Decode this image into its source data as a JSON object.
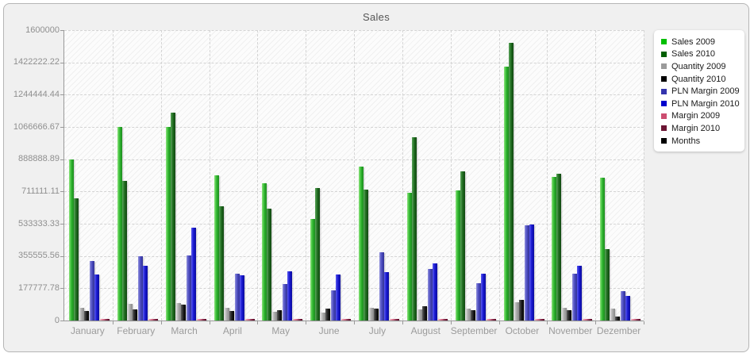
{
  "title": "Sales",
  "legend": {
    "items": [
      {
        "label": "Sales 2009",
        "color": "#00bf00"
      },
      {
        "label": "Sales 2010",
        "color": "#005f00"
      },
      {
        "label": "Quantity 2009",
        "color": "#9b9b9b"
      },
      {
        "label": "Quantity 2010",
        "color": "#000000"
      },
      {
        "label": "PLN Margin 2009",
        "color": "#3434ad"
      },
      {
        "label": "PLN Margin 2010",
        "color": "#0000cc"
      },
      {
        "label": "Margin 2009",
        "color": "#cc4d70"
      },
      {
        "label": "Margin 2010",
        "color": "#6b1433"
      },
      {
        "label": "Months",
        "color": "#000000"
      }
    ]
  },
  "chart_data": {
    "type": "bar",
    "title": "Sales",
    "categories": [
      "January",
      "February",
      "March",
      "April",
      "May",
      "June",
      "July",
      "August",
      "September",
      "October",
      "November",
      "Dezember"
    ],
    "y_ticks": [
      "1600000",
      "1422222.22",
      "1244444.44",
      "1066666.67",
      "888888.89",
      "711111.11",
      "533333.33",
      "355555.56",
      "177777.78",
      "0"
    ],
    "ylim": [
      0,
      1600000
    ],
    "grid": {
      "horizontal": "dashed",
      "vertical": "dashed"
    },
    "legend_position": "top-right",
    "plot_background": "hatched",
    "series": [
      {
        "name": "Sales 2009",
        "color": "#2eb62e",
        "highlight": "#8ee47e",
        "edge": "#1d8a1f",
        "values": [
          888000,
          1065000,
          1065000,
          800000,
          755000,
          560000,
          850000,
          705000,
          715000,
          1400000,
          790000,
          785000
        ]
      },
      {
        "name": "Sales 2010",
        "color": "#1e6b1e",
        "highlight": "#5da55d",
        "edge": "#124712",
        "values": [
          675000,
          770000,
          1145000,
          630000,
          615000,
          730000,
          720000,
          1010000,
          820000,
          1530000,
          810000,
          395000
        ]
      },
      {
        "name": "Quantity 2009",
        "color": "#a8a8a8",
        "highlight": "#d9d9d9",
        "edge": "#8a8a8a",
        "values": [
          70000,
          90000,
          95000,
          70000,
          48000,
          44000,
          70000,
          61000,
          65000,
          100000,
          70000,
          65000
        ]
      },
      {
        "name": "Quantity 2010",
        "color": "#1f1f1f",
        "highlight": "#606060",
        "edge": "#000000",
        "values": [
          52000,
          61000,
          88000,
          52000,
          57000,
          65000,
          65000,
          78000,
          57000,
          115000,
          57000,
          22000
        ]
      },
      {
        "name": "PLN Margin 2009",
        "color": "#4a4ac0",
        "highlight": "#9292dd",
        "edge": "#333394",
        "values": [
          330000,
          355000,
          357000,
          260000,
          200000,
          165000,
          375000,
          285000,
          205000,
          525000,
          260000,
          160000
        ]
      },
      {
        "name": "PLN Margin 2010",
        "color": "#1717cf",
        "highlight": "#5c5cf0",
        "edge": "#0c0c9e",
        "values": [
          255000,
          300000,
          510000,
          250000,
          270000,
          255000,
          265000,
          315000,
          260000,
          530000,
          300000,
          135000
        ]
      },
      {
        "name": "Margin 2009",
        "color": "#e2849b",
        "highlight": "#f2bcc9",
        "edge": "#c05a77",
        "values": [
          9000,
          9000,
          9000,
          9000,
          9000,
          9000,
          9000,
          9000,
          9000,
          9000,
          9000,
          9000
        ]
      },
      {
        "name": "Margin 2010",
        "color": "#7c2040",
        "highlight": "#a85670",
        "edge": "#5a0f2a",
        "values": [
          8000,
          8000,
          8000,
          8000,
          8000,
          8000,
          8000,
          8000,
          8000,
          8000,
          8000,
          8000
        ]
      }
    ]
  }
}
